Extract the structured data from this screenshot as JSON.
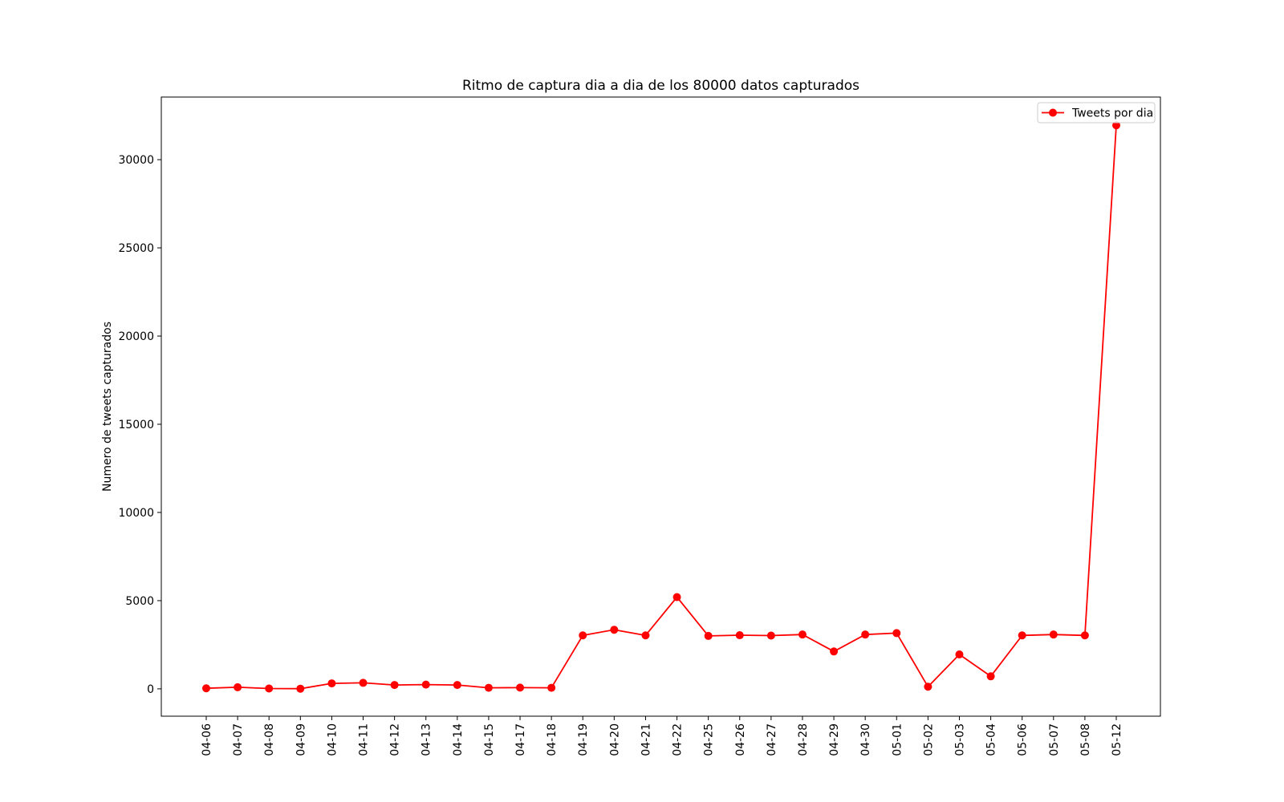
{
  "chart_data": {
    "type": "line",
    "title": "Ritmo de captura dia a dia de los 80000 datos capturados",
    "xlabel": "",
    "ylabel": "Numero de tweets capturados",
    "categories": [
      "04-06",
      "04-07",
      "04-08",
      "04-09",
      "04-10",
      "04-11",
      "04-12",
      "04-13",
      "04-14",
      "04-15",
      "04-17",
      "04-18",
      "04-19",
      "04-20",
      "04-21",
      "04-22",
      "04-25",
      "04-26",
      "04-27",
      "04-28",
      "04-29",
      "04-30",
      "05-01",
      "05-02",
      "05-03",
      "05-04",
      "05-06",
      "05-07",
      "05-08",
      "05-12"
    ],
    "series": [
      {
        "name": "Tweets por dia",
        "color": "#ff0000",
        "marker": "circle",
        "values": [
          30,
          90,
          20,
          10,
          310,
          340,
          220,
          240,
          220,
          60,
          70,
          60,
          3030,
          3350,
          3030,
          5200,
          3000,
          3040,
          3020,
          3080,
          2120,
          3080,
          3160,
          120,
          1950,
          710,
          3030,
          3080,
          3030,
          31950
        ]
      }
    ],
    "ylim": [
      -1550,
      33550
    ],
    "yticks": [
      0,
      5000,
      10000,
      15000,
      20000,
      25000,
      30000
    ],
    "ytick_labels": [
      "0",
      "5000",
      "10000",
      "15000",
      "20000",
      "25000",
      "30000"
    ],
    "grid": false,
    "legend_position": "top-right"
  }
}
